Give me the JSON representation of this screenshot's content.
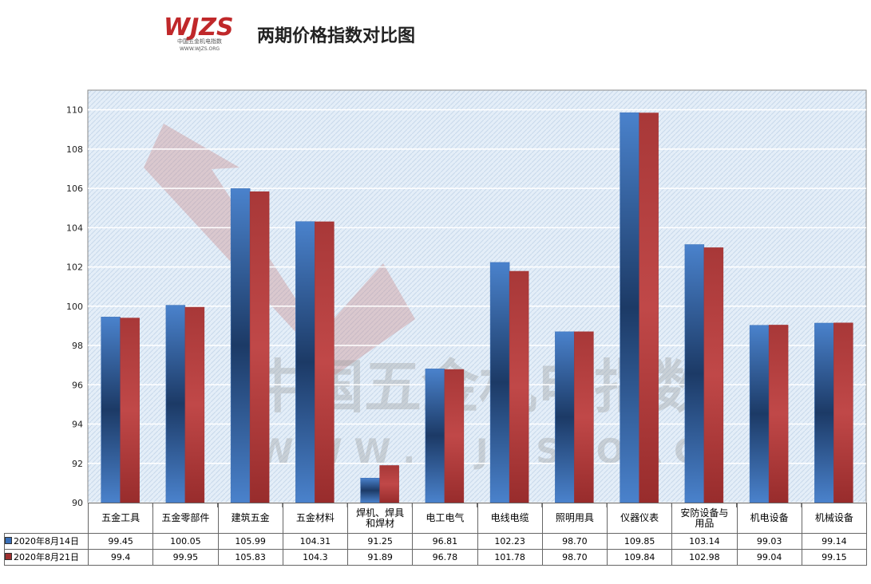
{
  "header": {
    "logo": "WJZS",
    "logo_subtitle": "中国五金机电指数",
    "logo_url": "WWW.WJZS.ORG"
  },
  "watermark": {
    "line1": "中国五金机电指数",
    "line2": "W W W . W J Z S . O R G"
  },
  "chart_data": {
    "type": "bar",
    "title": "两期价格指数对比图",
    "categories": [
      "五金工具",
      "五金零部件",
      "建筑五金",
      "五金材料",
      "焊机、焊具和焊材",
      "电工电气",
      "电线电缆",
      "照明用具",
      "仪器仪表",
      "安防设备与用品",
      "机电设备",
      "机械设备"
    ],
    "series": [
      {
        "name": "2020年8月14日",
        "color": "#3a6fb8",
        "values": [
          99.45,
          100.05,
          105.99,
          104.31,
          91.25,
          96.81,
          102.23,
          98.7,
          109.85,
          103.14,
          99.03,
          99.14
        ],
        "value_labels": [
          "99.45",
          "100.05",
          "105.99",
          "104.31",
          "91.25",
          "96.81",
          "102.23",
          "98.70",
          "109.85",
          "103.14",
          "99.03",
          "99.14"
        ]
      },
      {
        "name": "2020年8月21日",
        "color": "#a03030",
        "values": [
          99.4,
          99.95,
          105.83,
          104.3,
          91.89,
          96.78,
          101.78,
          98.7,
          109.84,
          102.98,
          99.04,
          99.15
        ],
        "value_labels": [
          "99.4",
          "99.95",
          "105.83",
          "104.3",
          "91.89",
          "96.78",
          "101.78",
          "98.70",
          "109.84",
          "102.98",
          "99.04",
          "99.15"
        ]
      }
    ],
    "ylim": [
      90,
      111
    ],
    "yticks": [
      90,
      92,
      94,
      96,
      98,
      100,
      102,
      104,
      106,
      108,
      110
    ],
    "grid": true
  }
}
